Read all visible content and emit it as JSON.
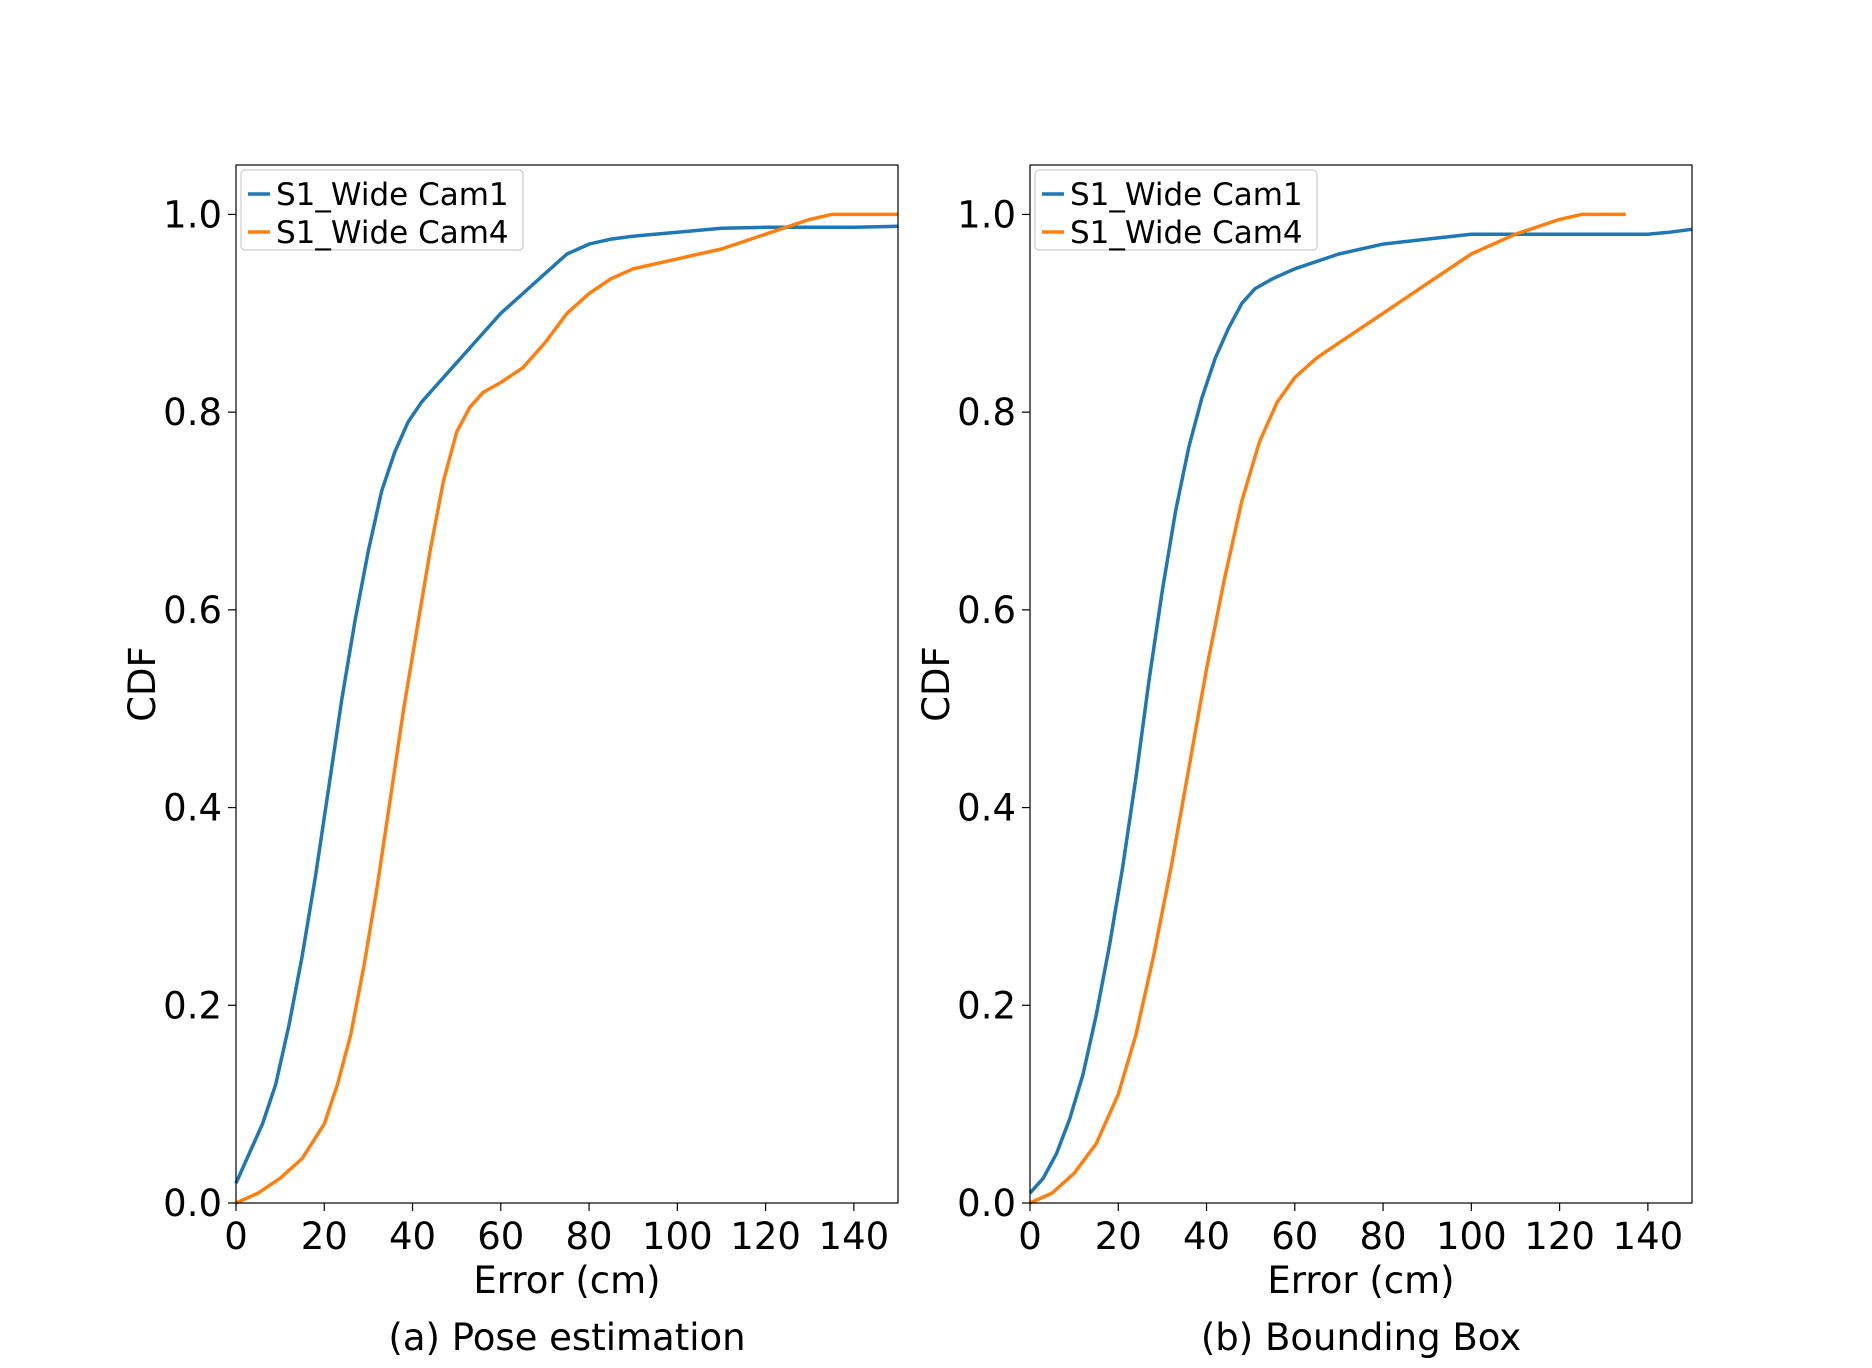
{
  "colors": {
    "series1": "#1f77b4",
    "series2": "#ff7f0e"
  },
  "chart_data": [
    {
      "type": "line",
      "caption": "(a) Pose estimation",
      "xlabel": "Error (cm)",
      "ylabel": "CDF",
      "xlim": [
        0,
        150
      ],
      "ylim": [
        0,
        1.05
      ],
      "xticks": [
        "0",
        "20",
        "40",
        "60",
        "80",
        "100",
        "120",
        "140"
      ],
      "yticks": [
        "0.0",
        "0.2",
        "0.4",
        "0.6",
        "0.8",
        "1.0"
      ],
      "legend_position": "top-left",
      "grid": false,
      "series": [
        {
          "name": "S1_Wide Cam1",
          "x": [
            0,
            3,
            6,
            9,
            12,
            15,
            18,
            21,
            24,
            27,
            30,
            33,
            36,
            39,
            42,
            45,
            50,
            55,
            60,
            65,
            70,
            75,
            80,
            85,
            90,
            100,
            110,
            120,
            130,
            140,
            150
          ],
          "y": [
            0.02,
            0.05,
            0.08,
            0.12,
            0.18,
            0.25,
            0.33,
            0.42,
            0.51,
            0.59,
            0.66,
            0.72,
            0.76,
            0.79,
            0.81,
            0.825,
            0.85,
            0.875,
            0.9,
            0.92,
            0.94,
            0.96,
            0.97,
            0.975,
            0.978,
            0.982,
            0.986,
            0.987,
            0.987,
            0.987,
            0.988
          ]
        },
        {
          "name": "S1_Wide Cam4",
          "x": [
            0,
            5,
            10,
            15,
            20,
            23,
            26,
            29,
            32,
            35,
            38,
            41,
            44,
            47,
            50,
            53,
            56,
            60,
            65,
            70,
            75,
            80,
            85,
            90,
            100,
            110,
            120,
            130,
            135,
            140,
            150
          ],
          "y": [
            0.0,
            0.01,
            0.025,
            0.045,
            0.08,
            0.12,
            0.17,
            0.24,
            0.32,
            0.41,
            0.5,
            0.58,
            0.66,
            0.73,
            0.78,
            0.805,
            0.82,
            0.83,
            0.845,
            0.87,
            0.9,
            0.92,
            0.935,
            0.945,
            0.955,
            0.965,
            0.98,
            0.995,
            1.0,
            1.0,
            1.0
          ]
        }
      ]
    },
    {
      "type": "line",
      "caption": "(b) Bounding Box",
      "xlabel": "Error (cm)",
      "ylabel": "CDF",
      "xlim": [
        0,
        150
      ],
      "ylim": [
        0,
        1.05
      ],
      "xticks": [
        "0",
        "20",
        "40",
        "60",
        "80",
        "100",
        "120",
        "140"
      ],
      "yticks": [
        "0.0",
        "0.2",
        "0.4",
        "0.6",
        "0.8",
        "1.0"
      ],
      "legend_position": "top-left",
      "grid": false,
      "series": [
        {
          "name": "S1_Wide Cam1",
          "x": [
            0,
            3,
            6,
            9,
            12,
            15,
            18,
            21,
            24,
            27,
            30,
            33,
            36,
            39,
            42,
            45,
            48,
            51,
            55,
            60,
            70,
            80,
            90,
            100,
            110,
            120,
            130,
            140,
            145,
            150
          ],
          "y": [
            0.01,
            0.025,
            0.05,
            0.085,
            0.13,
            0.19,
            0.26,
            0.34,
            0.43,
            0.53,
            0.62,
            0.7,
            0.765,
            0.815,
            0.855,
            0.885,
            0.91,
            0.925,
            0.935,
            0.945,
            0.96,
            0.97,
            0.975,
            0.98,
            0.98,
            0.98,
            0.98,
            0.98,
            0.982,
            0.985
          ]
        },
        {
          "name": "S1_Wide Cam4",
          "x": [
            0,
            5,
            10,
            15,
            20,
            24,
            28,
            32,
            36,
            40,
            44,
            48,
            52,
            56,
            60,
            65,
            70,
            80,
            90,
            100,
            110,
            120,
            125,
            130,
            135
          ],
          "y": [
            0.0,
            0.01,
            0.03,
            0.06,
            0.11,
            0.17,
            0.25,
            0.34,
            0.44,
            0.54,
            0.63,
            0.71,
            0.77,
            0.81,
            0.835,
            0.855,
            0.87,
            0.9,
            0.93,
            0.96,
            0.98,
            0.995,
            1.0,
            1.0,
            1.0
          ]
        }
      ]
    }
  ]
}
